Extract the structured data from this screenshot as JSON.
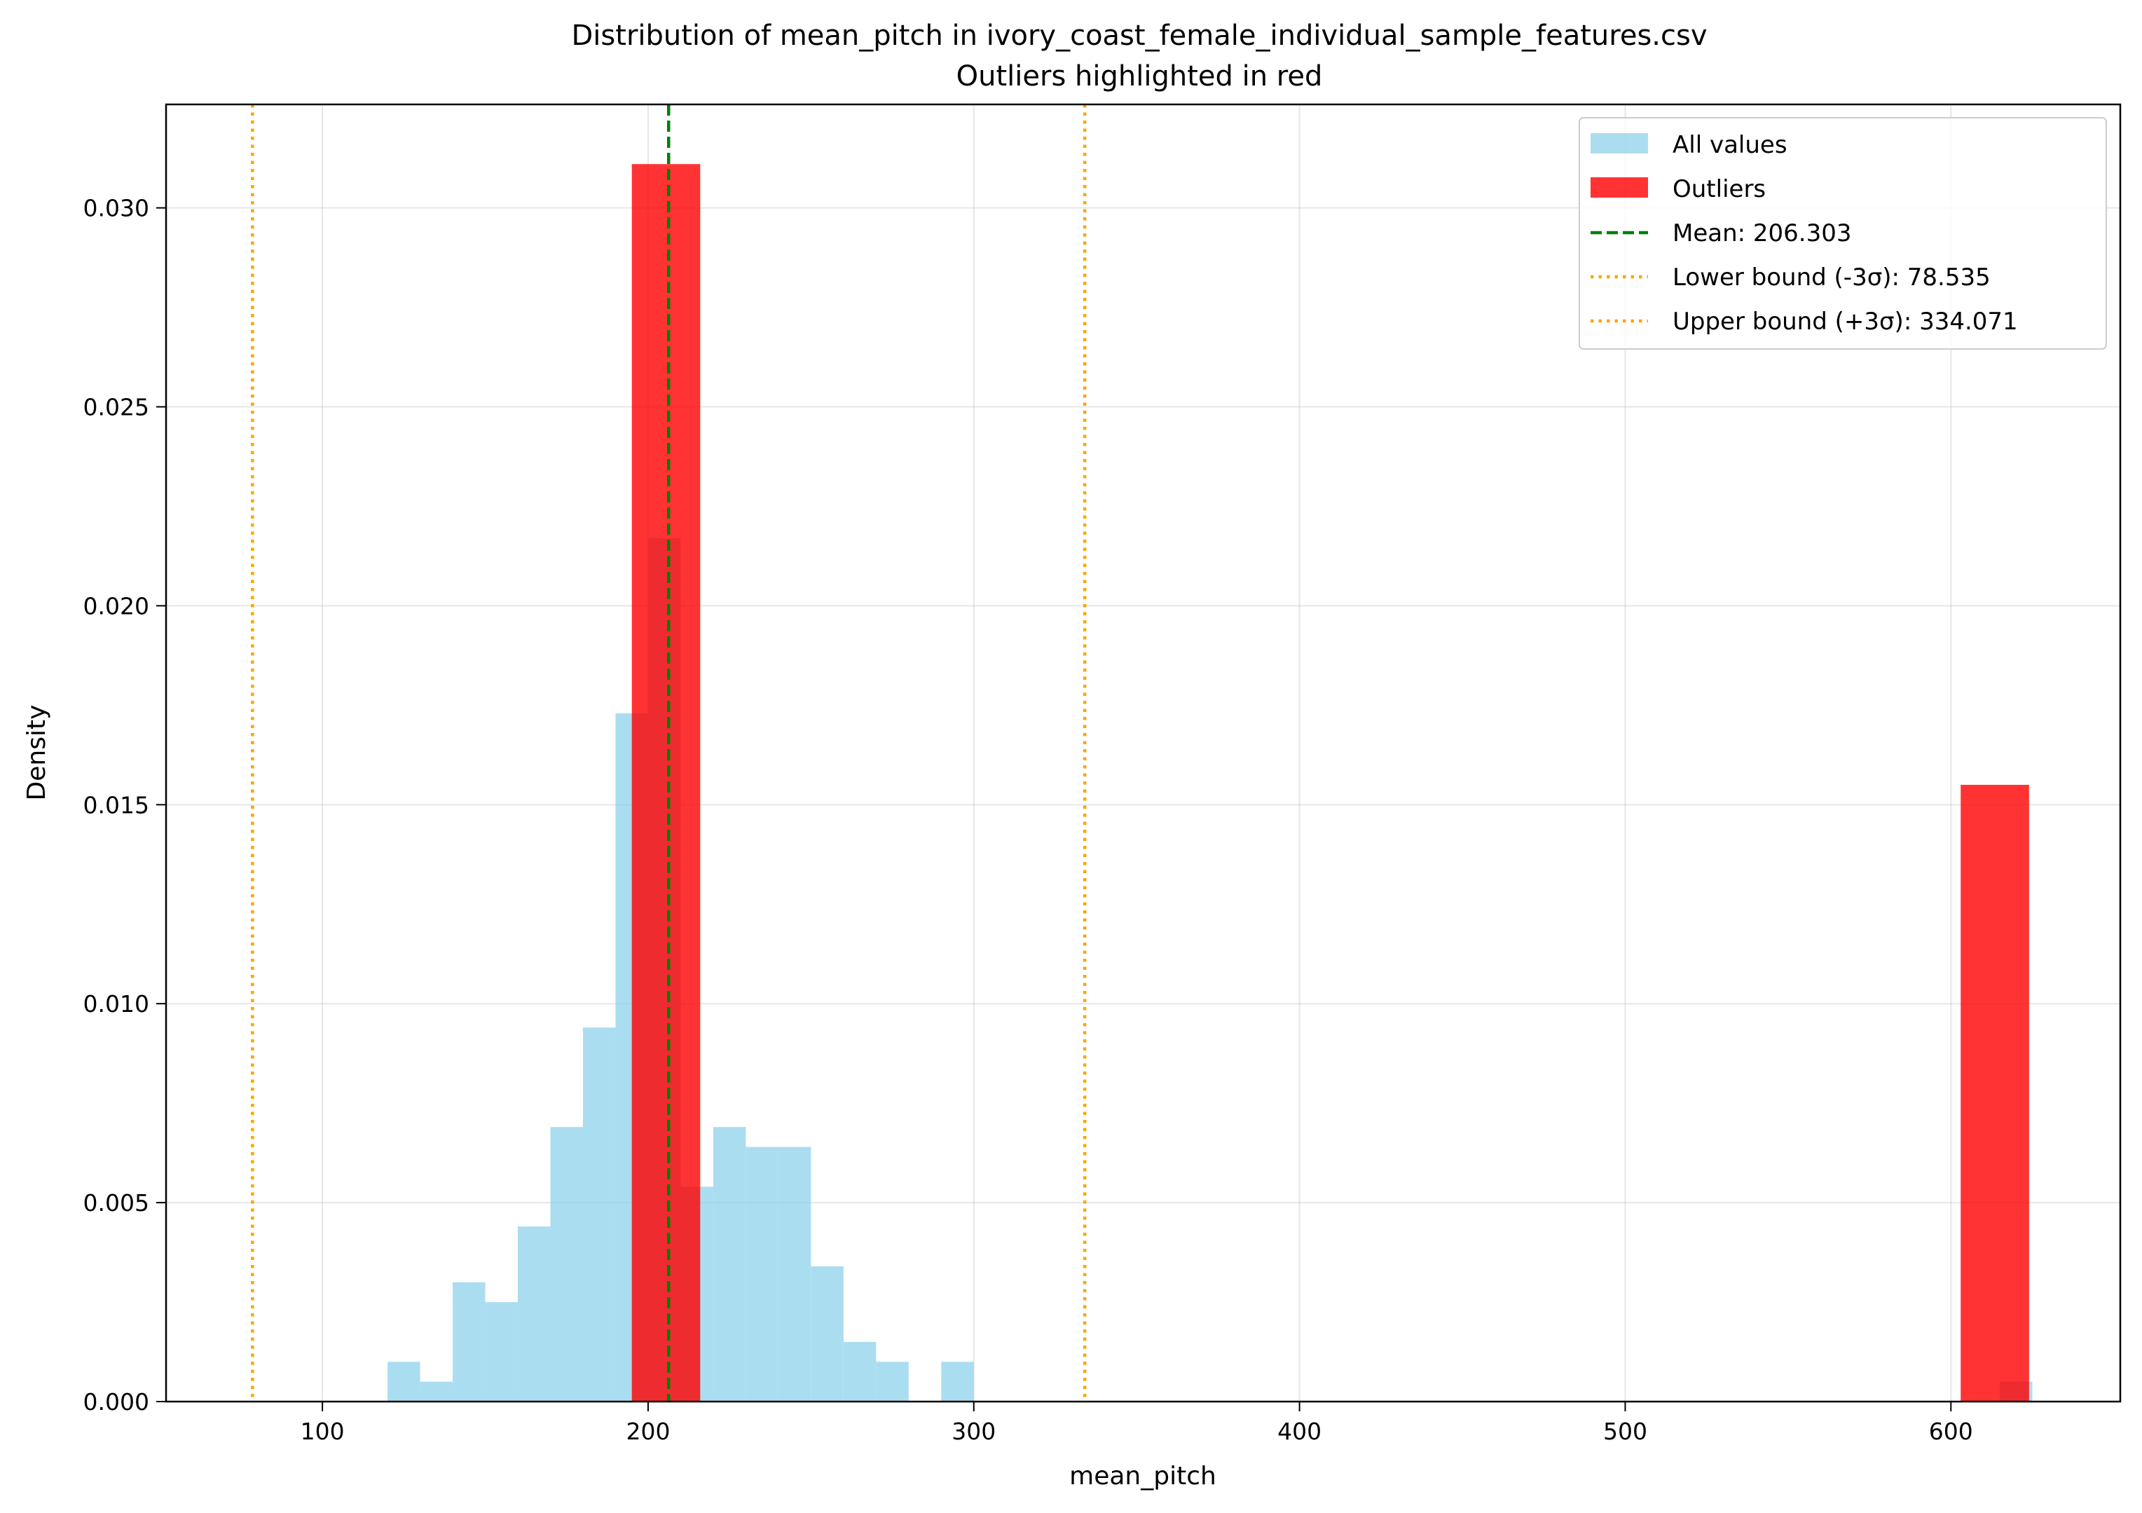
{
  "chart_data": {
    "type": "bar",
    "title": "Distribution of mean_pitch in ivory_coast_female_individual_sample_features.csv",
    "subtitle": "Outliers highlighted in red",
    "xlabel": "mean_pitch",
    "ylabel": "Density",
    "xlim": [
      52,
      652
    ],
    "ylim": [
      0,
      0.0326
    ],
    "xticks": [
      100,
      200,
      300,
      400,
      500,
      600
    ],
    "xtick_labels": [
      "100",
      "200",
      "300",
      "400",
      "500",
      "600"
    ],
    "yticks": [
      0,
      0.005,
      0.01,
      0.015,
      0.02,
      0.025,
      0.03
    ],
    "ytick_labels": [
      "0.000",
      "0.005",
      "0.010",
      "0.015",
      "0.020",
      "0.025",
      "0.030"
    ],
    "grid": true,
    "legend_position": "top-right",
    "series": [
      {
        "name": "All values",
        "color": "#87ceeb",
        "opacity": 0.7,
        "bins": [
          {
            "x0": 120,
            "x1": 130,
            "density": 0.001
          },
          {
            "x0": 130,
            "x1": 140,
            "density": 0.0005
          },
          {
            "x0": 140,
            "x1": 150,
            "density": 0.003
          },
          {
            "x0": 150,
            "x1": 160,
            "density": 0.0025
          },
          {
            "x0": 160,
            "x1": 170,
            "density": 0.0044
          },
          {
            "x0": 170,
            "x1": 180,
            "density": 0.0069
          },
          {
            "x0": 180,
            "x1": 190,
            "density": 0.0094
          },
          {
            "x0": 190,
            "x1": 200,
            "density": 0.0173
          },
          {
            "x0": 200,
            "x1": 210,
            "density": 0.0217
          },
          {
            "x0": 210,
            "x1": 220,
            "density": 0.0054
          },
          {
            "x0": 220,
            "x1": 230,
            "density": 0.0069
          },
          {
            "x0": 230,
            "x1": 240,
            "density": 0.0064
          },
          {
            "x0": 240,
            "x1": 250,
            "density": 0.0064
          },
          {
            "x0": 250,
            "x1": 260,
            "density": 0.0034
          },
          {
            "x0": 260,
            "x1": 270,
            "density": 0.0015
          },
          {
            "x0": 270,
            "x1": 280,
            "density": 0.001
          },
          {
            "x0": 290,
            "x1": 300,
            "density": 0.001
          },
          {
            "x0": 615,
            "x1": 625,
            "density": 0.0005
          }
        ]
      },
      {
        "name": "Outliers",
        "color": "#ff0000",
        "opacity": 0.8,
        "bins": [
          {
            "x0": 195,
            "x1": 216,
            "density": 0.0311
          },
          {
            "x0": 603,
            "x1": 624,
            "density": 0.0155
          }
        ]
      }
    ],
    "reference_lines": [
      {
        "name": "Mean: 206.303",
        "x": 206.303,
        "color": "#008000",
        "style": "dashed"
      },
      {
        "name": "Lower bound (-3σ): 78.535",
        "x": 78.535,
        "color": "#ffa500",
        "style": "dotted"
      },
      {
        "name": "Upper bound (+3σ): 334.071",
        "x": 334.071,
        "color": "#ffa500",
        "style": "dotted"
      }
    ]
  }
}
